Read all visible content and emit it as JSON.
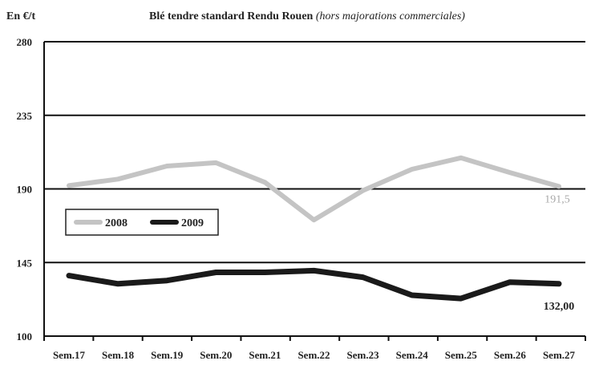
{
  "chart_data": {
    "type": "line",
    "title": "Blé tendre standard Rendu Rouen",
    "subtitle": "(hors majorations commerciales)",
    "ylabel": "En €/t",
    "xlabel": "",
    "categories": [
      "Sem.17",
      "Sem.18",
      "Sem.19",
      "Sem.20",
      "Sem.21",
      "Sem.22",
      "Sem.23",
      "Sem.24",
      "Sem.25",
      "Sem.26",
      "Sem.27"
    ],
    "ylim": [
      100,
      280
    ],
    "yticks": [
      "100",
      "145",
      "190",
      "235",
      "280"
    ],
    "grid": true,
    "legend_position": "left-middle",
    "series": [
      {
        "name": "2008",
        "color": "#c4c4c4",
        "values": [
          192,
          196,
          204,
          206,
          194,
          171,
          189,
          202,
          209,
          200,
          191.5
        ],
        "end_label": "191,5",
        "end_label_color": "#a8a8a8"
      },
      {
        "name": "2009",
        "color": "#1a1a1a",
        "values": [
          137,
          132,
          134,
          139,
          139,
          140,
          136,
          125,
          123,
          133,
          132
        ],
        "end_label": "132,00",
        "end_label_color": "#222222"
      }
    ]
  }
}
